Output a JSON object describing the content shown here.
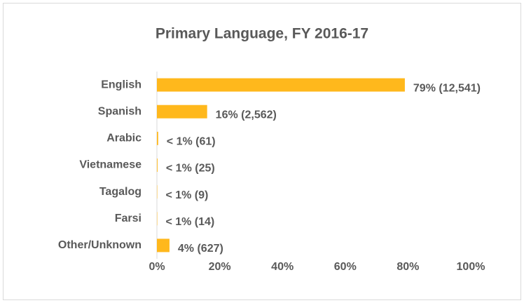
{
  "chart_data": {
    "type": "barh",
    "title": "Primary Language, FY 2016-17",
    "categories": [
      "English",
      "Spanish",
      "Arabic",
      "Vietnamese",
      "Tagalog",
      "Farsi",
      "Other/Unknown"
    ],
    "values": [
      79,
      16,
      0.4,
      0.2,
      0.1,
      0.1,
      4
    ],
    "value_labels": [
      "79% (12,541)",
      "16% (2,562)",
      "< 1% (61)",
      "< 1% (25)",
      "< 1% (9)",
      "< 1% (14)",
      "4% (627)"
    ],
    "color": "#ffb81c",
    "xlim": [
      0,
      100
    ],
    "xticks": [
      {
        "value": 0,
        "label": "0%"
      },
      {
        "value": 20,
        "label": "20%"
      },
      {
        "value": 40,
        "label": "40%"
      },
      {
        "value": 60,
        "label": "60%"
      },
      {
        "value": 80,
        "label": "80%"
      },
      {
        "value": 100,
        "label": "100%"
      }
    ],
    "grid": false
  }
}
